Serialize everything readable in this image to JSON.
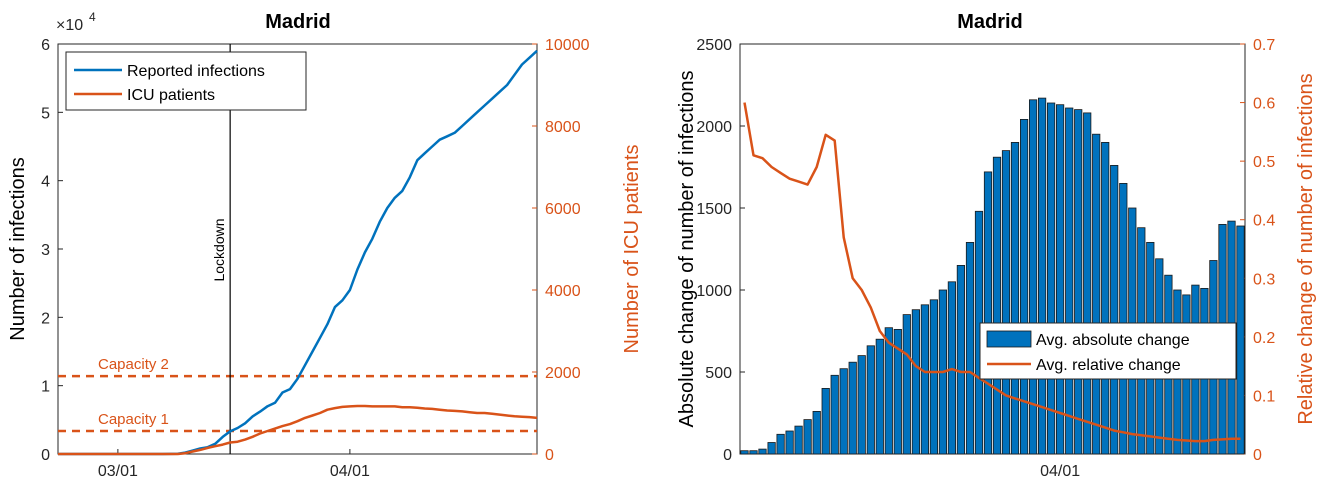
{
  "colors": {
    "blue": "#0072BD",
    "orange": "#D95319",
    "bar": "#0072BD"
  },
  "chart_data": [
    {
      "type": "line",
      "title": "Madrid",
      "ylabel": "Number of infections",
      "ylabel_right": "Number of ICU patients",
      "exponent_label": "×10",
      "exponent_power": "4",
      "ylim": [
        0,
        6
      ],
      "ylim_right": [
        0,
        10000
      ],
      "y_ticks": [
        "0",
        "1",
        "2",
        "3",
        "4",
        "5",
        "6"
      ],
      "y_ticks_right": [
        "0",
        "2000",
        "4000",
        "6000",
        "8000",
        "10000"
      ],
      "x_ticks": [
        "03/01",
        "04/01"
      ],
      "x_tick_days": [
        8,
        39
      ],
      "x_range_days": [
        0,
        64
      ],
      "legend": [
        "Reported infections",
        "ICU patients"
      ],
      "legend_position": "top-left",
      "series": [
        {
          "name": "Reported infections",
          "axis": "left",
          "x": [
            0,
            2,
            4,
            6,
            8,
            10,
            12,
            14,
            16,
            17,
            18,
            19,
            20,
            21,
            22,
            23,
            24,
            25,
            26,
            27,
            28,
            29,
            30,
            31,
            32,
            33,
            34,
            35,
            36,
            37,
            38,
            39,
            40,
            41,
            42,
            43,
            44,
            45,
            46,
            47,
            48,
            49,
            50,
            51,
            52,
            53,
            54,
            55,
            56,
            57,
            58,
            59,
            60,
            61,
            62,
            63,
            64
          ],
          "values": [
            0,
            0,
            0,
            0,
            0,
            0,
            0,
            0,
            0.005,
            0.02,
            0.05,
            0.08,
            0.1,
            0.15,
            0.25,
            0.33,
            0.38,
            0.45,
            0.55,
            0.62,
            0.7,
            0.75,
            0.9,
            0.95,
            1.1,
            1.3,
            1.5,
            1.7,
            1.9,
            2.15,
            2.25,
            2.4,
            2.7,
            2.95,
            3.15,
            3.4,
            3.6,
            3.75,
            3.85,
            4.05,
            4.3,
            4.4,
            4.5,
            4.6,
            4.65,
            4.7,
            4.8,
            4.9,
            5.0,
            5.1,
            5.2,
            5.3,
            5.4,
            5.55,
            5.7,
            5.8,
            5.9
          ]
        },
        {
          "name": "ICU patients",
          "axis": "right",
          "x": [
            0,
            4,
            8,
            12,
            16,
            17,
            18,
            19,
            20,
            21,
            22,
            23,
            24,
            25,
            26,
            27,
            28,
            29,
            30,
            31,
            32,
            33,
            34,
            35,
            36,
            37,
            38,
            39,
            40,
            41,
            42,
            43,
            44,
            45,
            46,
            47,
            48,
            49,
            50,
            51,
            52,
            53,
            54,
            55,
            56,
            57,
            58,
            59,
            60,
            61,
            62,
            63,
            64
          ],
          "values": [
            0,
            0,
            0,
            0,
            0,
            20,
            60,
            100,
            150,
            190,
            230,
            280,
            300,
            350,
            420,
            500,
            560,
            620,
            680,
            730,
            800,
            880,
            940,
            1000,
            1080,
            1120,
            1150,
            1160,
            1170,
            1170,
            1160,
            1160,
            1160,
            1160,
            1140,
            1140,
            1130,
            1110,
            1100,
            1080,
            1060,
            1050,
            1040,
            1020,
            1000,
            1000,
            980,
            960,
            940,
            920,
            910,
            900,
            880
          ]
        }
      ],
      "reference_lines": [
        {
          "label": "Capacity 2",
          "axis": "right",
          "value": 1900
        },
        {
          "label": "Capacity 1",
          "axis": "right",
          "value": 560
        }
      ],
      "annotation": {
        "label": "Lockdown",
        "x_day": 23
      }
    },
    {
      "type": "bar",
      "title": "Madrid",
      "ylabel": "Absolute change of number of infections",
      "ylabel_right": "Relative change of number of infections",
      "ylim": [
        0,
        2500
      ],
      "ylim_right": [
        0,
        0.7
      ],
      "y_ticks": [
        "0",
        "500",
        "1000",
        "1500",
        "2000",
        "2500"
      ],
      "y_ticks_right": [
        "0",
        "0.1",
        "0.2",
        "0.3",
        "0.4",
        "0.5",
        "0.6",
        "0.7"
      ],
      "x_ticks": [
        "04/01"
      ],
      "x_tick_index": 35,
      "legend": [
        "Avg. absolute change",
        "Avg. relative change"
      ],
      "legend_position": "right",
      "series": [
        {
          "name": "Avg. absolute change",
          "axis": "left",
          "values": [
            20,
            20,
            30,
            70,
            120,
            140,
            170,
            210,
            260,
            400,
            480,
            520,
            560,
            600,
            660,
            700,
            770,
            760,
            850,
            880,
            910,
            940,
            1000,
            1050,
            1150,
            1290,
            1480,
            1720,
            1810,
            1850,
            1900,
            2040,
            2160,
            2170,
            2140,
            2130,
            2110,
            2100,
            2080,
            1950,
            1900,
            1760,
            1650,
            1500,
            1380,
            1290,
            1190,
            1090,
            1000,
            970,
            1030,
            1010,
            1180,
            1400,
            1420,
            1390
          ]
        },
        {
          "name": "Avg. relative change",
          "axis": "right",
          "values": [
            0.6,
            0.51,
            0.505,
            0.49,
            0.48,
            0.47,
            0.465,
            0.46,
            0.49,
            0.545,
            0.535,
            0.37,
            0.3,
            0.28,
            0.25,
            0.21,
            0.19,
            0.18,
            0.17,
            0.15,
            0.14,
            0.14,
            0.14,
            0.145,
            0.14,
            0.14,
            0.13,
            0.12,
            0.11,
            0.1,
            0.095,
            0.09,
            0.085,
            0.08,
            0.075,
            0.07,
            0.065,
            0.06,
            0.055,
            0.05,
            0.045,
            0.04,
            0.037,
            0.034,
            0.032,
            0.03,
            0.028,
            0.026,
            0.024,
            0.023,
            0.022,
            0.022,
            0.024,
            0.025,
            0.026,
            0.026
          ]
        }
      ]
    }
  ]
}
